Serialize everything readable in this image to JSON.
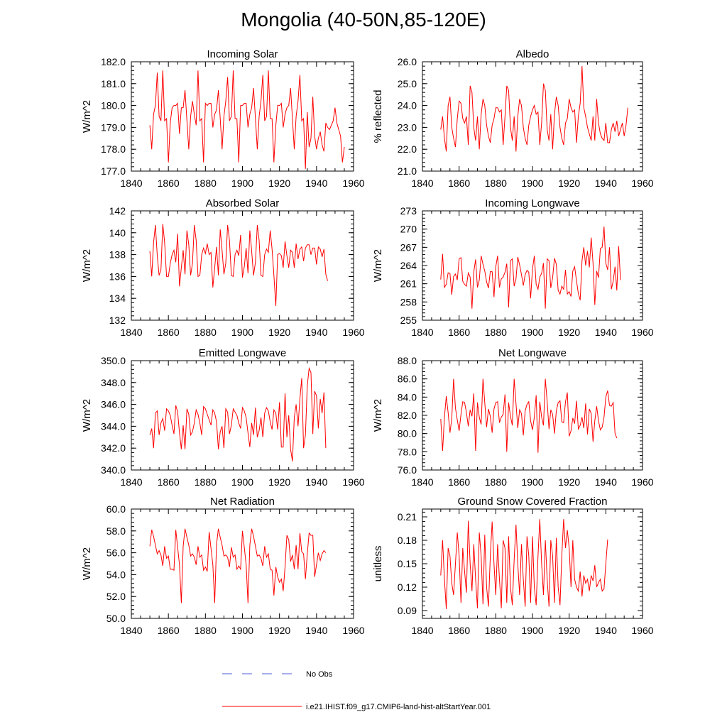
{
  "figure": {
    "title": "Mongolia (40-50N,85-120E)",
    "legend": [
      {
        "label": "No Obs",
        "color": "#4d5fd6",
        "style": "dashed"
      },
      {
        "label": "i.e21.IHIST.f09_g17.CMIP6-land-hist-altStartYear.001",
        "color": "#ff0000",
        "style": "solid"
      }
    ]
  },
  "chart_data": [
    {
      "type": "line",
      "title": "Incoming Solar",
      "xlabel": "",
      "ylabel": "W/m^2",
      "xlim": [
        1840,
        1960
      ],
      "ylim": [
        177.0,
        182.0
      ],
      "xticks": [
        "1840",
        "1860",
        "1880",
        "1900",
        "1920",
        "1940",
        "1960"
      ],
      "yticks": [
        "177.0",
        "178.0",
        "179.0",
        "180.0",
        "181.0",
        "182.0"
      ],
      "series": [
        {
          "color": "#ff0000",
          "x_start": 1850,
          "values": [
            179.1,
            178.0,
            179.6,
            180.0,
            181.5,
            179.5,
            179.3,
            181.6,
            179.3,
            179.4,
            177.4,
            179.2,
            179.9,
            180.0,
            180.0,
            180.1,
            178.7,
            179.9,
            179.9,
            180.7,
            179.3,
            178.0,
            179.5,
            180.2,
            179.6,
            179.1,
            181.6,
            179.3,
            179.4,
            177.4,
            180.1,
            180.0,
            180.1,
            180.1,
            179.0,
            179.6,
            179.8,
            180.7,
            179.4,
            178.0,
            179.5,
            180.2,
            181.3,
            179.3,
            179.5,
            181.6,
            179.4,
            179.4,
            177.4,
            180.0,
            180.0,
            180.1,
            180.1,
            179.0,
            179.6,
            179.9,
            180.8,
            179.4,
            178.0,
            179.5,
            180.2,
            181.4,
            179.3,
            179.5,
            181.6,
            179.4,
            179.4,
            177.4,
            179.1,
            180.0,
            180.0,
            180.1,
            179.0,
            179.6,
            179.9,
            180.0,
            180.8,
            179.4,
            178.0,
            179.5,
            180.2,
            181.4,
            179.3,
            179.4,
            177.1,
            179.7,
            178.1,
            178.5,
            180.4,
            178.6,
            178.0,
            178.5,
            178.8,
            178.2,
            177.9,
            179.2,
            179.0,
            178.9,
            179.1,
            179.3,
            179.9,
            179.2,
            178.9,
            178.6,
            177.4,
            178.1
          ]
        }
      ]
    },
    {
      "type": "line",
      "title": "Albedo",
      "xlabel": "",
      "ylabel": "% reflected",
      "xlim": [
        1840,
        1960
      ],
      "ylim": [
        21.0,
        26.0
      ],
      "xticks": [
        "1840",
        "1860",
        "1880",
        "1900",
        "1920",
        "1940",
        "1960"
      ],
      "yticks": [
        "21.0",
        "22.0",
        "23.0",
        "24.0",
        "25.0",
        "26.0"
      ],
      "series": [
        {
          "color": "#ff0000",
          "x_start": 1850,
          "values": [
            22.9,
            23.5,
            22.5,
            21.9,
            24.0,
            24.4,
            23.0,
            22.5,
            22.1,
            23.4,
            24.2,
            24.1,
            23.4,
            23.2,
            23.5,
            22.2,
            24.9,
            24.6,
            23.0,
            22.4,
            23.5,
            22.0,
            23.6,
            24.3,
            24.0,
            23.1,
            22.6,
            22.3,
            23.1,
            23.4,
            23.9,
            23.9,
            23.7,
            23.8,
            22.2,
            23.5,
            24.9,
            24.7,
            23.0,
            22.4,
            23.5,
            21.9,
            23.5,
            24.3,
            24.0,
            23.0,
            22.5,
            22.2,
            23.1,
            23.5,
            23.8,
            24.0,
            23.6,
            23.7,
            22.2,
            23.2,
            25.0,
            24.7,
            22.9,
            22.4,
            23.6,
            22.0,
            23.6,
            24.4,
            24.0,
            23.0,
            22.5,
            22.2,
            23.2,
            23.4,
            24.3,
            23.9,
            23.7,
            23.8,
            22.3,
            23.5,
            24.1,
            25.8,
            23.9,
            23.5,
            23.0,
            22.7,
            22.4,
            23.5,
            22.4,
            24.3,
            23.2,
            22.7,
            22.5,
            22.4,
            23.2,
            22.3,
            22.3,
            22.9,
            23.2,
            22.8,
            23.3,
            22.6,
            22.9,
            23.2,
            22.6,
            23.1,
            23.9
          ]
        }
      ]
    },
    {
      "type": "line",
      "title": "Absorbed Solar",
      "xlabel": "",
      "ylabel": "W/m^2",
      "xlim": [
        1840,
        1960
      ],
      "ylim": [
        132,
        142
      ],
      "xticks": [
        "1840",
        "1860",
        "1880",
        "1900",
        "1920",
        "1940",
        "1960"
      ],
      "yticks": [
        "132",
        "134",
        "136",
        "138",
        "140",
        "142"
      ],
      "series": [
        {
          "color": "#ff0000",
          "x_start": 1850,
          "values": [
            138.3,
            136.0,
            139.1,
            140.7,
            137.9,
            136.1,
            136.6,
            140.8,
            139.1,
            136.0,
            136.0,
            137.2,
            138.0,
            138.4,
            137.3,
            139.9,
            135.1,
            136.8,
            138.4,
            136.2,
            140.2,
            138.9,
            136.1,
            137.2,
            140.7,
            139.3,
            136.0,
            136.1,
            138.0,
            138.6,
            138.1,
            139.0,
            138.0,
            138.2,
            135.0,
            136.8,
            138.7,
            136.1,
            140.3,
            138.4,
            136.2,
            137.2,
            140.7,
            139.3,
            136.1,
            136.0,
            138.0,
            138.4,
            137.9,
            139.8,
            135.9,
            136.9,
            138.6,
            136.3,
            140.2,
            138.3,
            136.1,
            137.3,
            140.7,
            139.3,
            136.1,
            136.0,
            138.0,
            138.5,
            138.2,
            140.2,
            138.5,
            136.1,
            133.3,
            138.0,
            138.1,
            137.9,
            136.8,
            139.2,
            137.9,
            136.8,
            138.4,
            138.2,
            136.8,
            139.0,
            137.6,
            138.5,
            138.7,
            137.4,
            138.6,
            138.9,
            138.9,
            138.0,
            138.6,
            138.6,
            137.1,
            138.7,
            138.5,
            137.8,
            138.5,
            136.2,
            135.6
          ]
        }
      ]
    },
    {
      "type": "line",
      "title": "Incoming Longwave",
      "xlabel": "",
      "ylabel": "W/m^2",
      "xlim": [
        1840,
        1960
      ],
      "ylim": [
        255,
        273
      ],
      "xticks": [
        "1840",
        "1860",
        "1880",
        "1900",
        "1920",
        "1940",
        "1960"
      ],
      "yticks": [
        "255",
        "258",
        "261",
        "264",
        "267",
        "270",
        "273"
      ],
      "series": [
        {
          "color": "#ff0000",
          "x_start": 1850,
          "values": [
            261.7,
            265.9,
            260.4,
            260.9,
            262.8,
            262.7,
            259.2,
            262.2,
            262.6,
            261.6,
            265.1,
            265.3,
            261.4,
            260.9,
            260.6,
            262.8,
            262.1,
            256.9,
            262.9,
            265.0,
            260.4,
            261.6,
            265.6,
            264.2,
            263.1,
            261.3,
            260.3,
            263.0,
            263.0,
            258.8,
            263.8,
            265.6,
            260.4,
            261.8,
            262.1,
            262.9,
            264.3,
            257.1,
            264.8,
            265.1,
            260.6,
            261.8,
            265.4,
            264.1,
            262.5,
            260.7,
            262.5,
            263.2,
            262.9,
            258.6,
            263.4,
            265.6,
            260.9,
            260.1,
            262.1,
            262.7,
            264.4,
            256.9,
            265.1,
            264.8,
            260.3,
            262.0,
            265.2,
            264.2,
            259.9,
            259.3,
            260.6,
            260.1,
            263.3,
            259.3,
            259.7,
            258.9,
            263.1,
            263.8,
            261.5,
            259.4,
            258.3,
            264.8,
            267.0,
            264.0,
            266.4,
            263.7,
            268.6,
            264.4,
            257.5,
            263.1,
            262.0,
            266.8,
            267.0,
            270.4,
            264.4,
            263.3,
            267.0,
            260.1,
            261.4,
            263.8,
            259.9,
            267.2,
            261.6
          ]
        }
      ]
    },
    {
      "type": "line",
      "title": "Emitted Longwave",
      "xlabel": "",
      "ylabel": "W/m^2",
      "xlim": [
        1840,
        1960
      ],
      "ylim": [
        340.0,
        350.0
      ],
      "xticks": [
        "1840",
        "1860",
        "1880",
        "1900",
        "1920",
        "1940",
        "1960"
      ],
      "yticks": [
        "340.0",
        "342.0",
        "344.0",
        "346.0",
        "348.0",
        "350.0"
      ],
      "series": [
        {
          "color": "#ff0000",
          "x_start": 1850,
          "values": [
            343.2,
            343.8,
            342.0,
            345.2,
            345.4,
            343.2,
            344.3,
            344.7,
            343.6,
            345.6,
            345.4,
            345.0,
            344.1,
            343.3,
            345.9,
            345.3,
            343.4,
            341.9,
            344.1,
            341.9,
            345.6,
            345.1,
            343.2,
            343.5,
            344.3,
            345.5,
            345.1,
            344.3,
            343.2,
            345.8,
            345.6,
            345.1,
            344.6,
            344.1,
            345.5,
            345.2,
            344.4,
            341.9,
            343.5,
            344.0,
            342.0,
            345.6,
            345.3,
            343.3,
            344.1,
            345.6,
            345.3,
            345.0,
            344.3,
            343.8,
            345.7,
            345.4,
            344.8,
            343.4,
            342.1,
            344.3,
            343.2,
            345.7,
            343.0,
            343.6,
            344.8,
            343.0,
            345.2,
            345.7,
            345.4,
            344.4,
            343.7,
            345.5,
            345.2,
            343.7,
            346.2,
            342.1,
            342.1,
            347.0,
            343.0,
            345.0,
            341.9,
            340.8,
            344.8,
            346.0,
            344.0,
            346.5,
            348.4,
            342.0,
            343.2,
            347.7,
            349.3,
            348.9,
            343.3,
            347.2,
            346.8,
            343.8,
            346.5,
            345.2,
            347.1,
            342.0
          ]
        }
      ]
    },
    {
      "type": "line",
      "title": "Net Longwave",
      "xlabel": "",
      "ylabel": "W/m^2",
      "xlim": [
        1840,
        1960
      ],
      "ylim": [
        76.0,
        88.0
      ],
      "xticks": [
        "1840",
        "1860",
        "1880",
        "1900",
        "1920",
        "1940",
        "1960"
      ],
      "yticks": [
        "76.0",
        "78.0",
        "80.0",
        "82.0",
        "84.0",
        "86.0",
        "88.0"
      ],
      "series": [
        {
          "color": "#ff0000",
          "x_start": 1850,
          "values": [
            81.6,
            78.1,
            81.8,
            84.1,
            82.3,
            80.1,
            81.6,
            86.0,
            82.8,
            81.5,
            80.3,
            82.1,
            83.5,
            83.4,
            82.3,
            80.8,
            82.6,
            81.9,
            84.4,
            78.1,
            83.4,
            81.8,
            81.0,
            86.0,
            83.4,
            80.7,
            82.7,
            81.9,
            80.1,
            82.7,
            83.4,
            83.5,
            81.2,
            81.8,
            82.1,
            84.3,
            78.0,
            83.4,
            81.9,
            80.9,
            86.0,
            83.3,
            80.6,
            82.6,
            82.2,
            79.8,
            82.5,
            83.2,
            83.5,
            81.4,
            80.4,
            81.8,
            84.2,
            77.9,
            83.5,
            81.8,
            80.9,
            86.0,
            83.5,
            80.5,
            82.6,
            82.1,
            80.0,
            82.5,
            83.4,
            83.6,
            81.3,
            81.2,
            83.5,
            84.5,
            79.7,
            80.3,
            81.7,
            81.1,
            83.6,
            80.5,
            80.9,
            81.8,
            80.6,
            83.3,
            79.9,
            82.7,
            82.2,
            79.1,
            81.4,
            83.0,
            81.4,
            80.4,
            80.7,
            81.8,
            84.0,
            84.7,
            83.1,
            83.0,
            83.4,
            80.0,
            79.5
          ]
        }
      ]
    },
    {
      "type": "line",
      "title": "Net Radiation",
      "xlabel": "",
      "ylabel": "W/m^2",
      "xlim": [
        1840,
        1960
      ],
      "ylim": [
        50.0,
        60.0
      ],
      "xticks": [
        "1840",
        "1860",
        "1880",
        "1900",
        "1920",
        "1940",
        "1960"
      ],
      "yticks": [
        "50.0",
        "52.0",
        "54.0",
        "56.0",
        "58.0",
        "60.0"
      ],
      "series": [
        {
          "color": "#ff0000",
          "x_start": 1850,
          "values": [
            56.6,
            58.1,
            57.5,
            56.7,
            55.9,
            56.2,
            55.8,
            54.8,
            56.6,
            55.5,
            55.7,
            54.5,
            54.5,
            54.4,
            58.1,
            56.5,
            54.9,
            51.4,
            56.6,
            58.2,
            57.4,
            56.7,
            55.7,
            55.9,
            55.6,
            54.9,
            56.6,
            55.6,
            55.8,
            54.4,
            54.7,
            54.3,
            57.9,
            56.4,
            54.9,
            51.4,
            56.8,
            58.2,
            57.4,
            56.7,
            55.7,
            55.8,
            55.6,
            54.7,
            56.5,
            55.6,
            55.8,
            54.5,
            54.8,
            54.5,
            58.0,
            56.5,
            54.9,
            51.4,
            56.7,
            58.2,
            57.5,
            56.6,
            55.7,
            55.8,
            55.5,
            54.8,
            56.6,
            55.6,
            55.9,
            54.5,
            54.4,
            52.1,
            54.7,
            53.8,
            53.3,
            53.6,
            52.5,
            54.7,
            57.6,
            57.2,
            55.2,
            55.8,
            54.5,
            56.7,
            54.5,
            57.8,
            56.1,
            55.9,
            53.6,
            55.9,
            57.8,
            57.6,
            57.6,
            53.8,
            54.9,
            56.0,
            55.3,
            55.9,
            56.2,
            56.0
          ]
        }
      ]
    },
    {
      "type": "line",
      "title": "Ground Snow Covered Fraction",
      "xlabel": "",
      "ylabel": "unitless",
      "xlim": [
        1840,
        1960
      ],
      "ylim": [
        0.08,
        0.22
      ],
      "xticks": [
        "1840",
        "1860",
        "1880",
        "1900",
        "1920",
        "1940",
        "1960"
      ],
      "yticks": [
        "0.09",
        "0.12",
        "0.15",
        "0.18",
        "0.21"
      ],
      "series": [
        {
          "color": "#ff0000",
          "x_start": 1850,
          "values": [
            0.135,
            0.18,
            0.13,
            0.092,
            0.17,
            0.16,
            0.125,
            0.11,
            0.15,
            0.19,
            0.16,
            0.1,
            0.17,
            0.14,
            0.113,
            0.205,
            0.15,
            0.115,
            0.175,
            0.13,
            0.093,
            0.19,
            0.16,
            0.098,
            0.187,
            0.12,
            0.095,
            0.16,
            0.204,
            0.15,
            0.11,
            0.175,
            0.13,
            0.093,
            0.18,
            0.17,
            0.1,
            0.185,
            0.12,
            0.097,
            0.155,
            0.2,
            0.15,
            0.11,
            0.175,
            0.13,
            0.095,
            0.185,
            0.16,
            0.1,
            0.185,
            0.12,
            0.097,
            0.16,
            0.207,
            0.15,
            0.11,
            0.18,
            0.13,
            0.095,
            0.18,
            0.16,
            0.1,
            0.183,
            0.12,
            0.097,
            0.16,
            0.207,
            0.17,
            0.193,
            0.17,
            0.12,
            0.18,
            0.13,
            0.12,
            0.115,
            0.14,
            0.108,
            0.135,
            0.125,
            0.13,
            0.115,
            0.135,
            0.128,
            0.148,
            0.12,
            0.126,
            0.13,
            0.115,
            0.118,
            0.15,
            0.181
          ]
        }
      ]
    }
  ]
}
